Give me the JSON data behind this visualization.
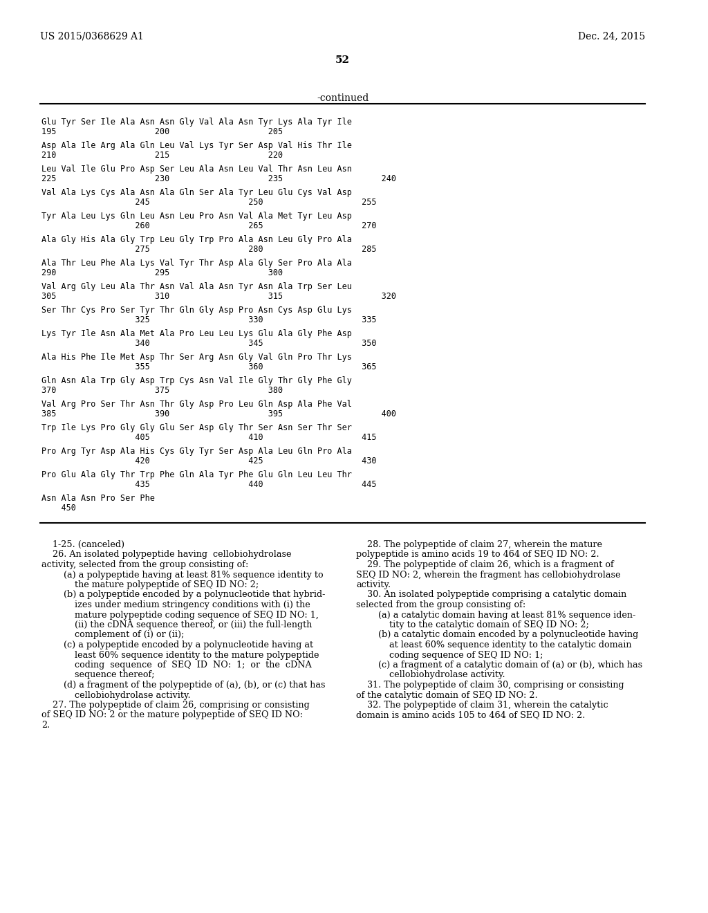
{
  "header_left": "US 2015/0368629 A1",
  "header_right": "Dec. 24, 2015",
  "page_number": "52",
  "continued_text": "-continued",
  "sequence_lines": [
    {
      "aa": "Glu Tyr Ser Ile Ala Asn Asn Gly Val Ala Asn Tyr Lys Ala Tyr Ile",
      "nums": "195                    200                    205"
    },
    {
      "aa": "Asp Ala Ile Arg Ala Gln Leu Val Lys Tyr Ser Asp Val His Thr Ile",
      "nums": "210                    215                    220"
    },
    {
      "aa": "Leu Val Ile Glu Pro Asp Ser Leu Ala Asn Leu Val Thr Asn Leu Asn",
      "nums": "225                    230                    235                    240"
    },
    {
      "aa": "Val Ala Lys Cys Ala Asn Ala Gln Ser Ala Tyr Leu Glu Cys Val Asp",
      "nums": "                   245                    250                    255"
    },
    {
      "aa": "Tyr Ala Leu Lys Gln Leu Asn Leu Pro Asn Val Ala Met Tyr Leu Asp",
      "nums": "                   260                    265                    270"
    },
    {
      "aa": "Ala Gly His Ala Gly Trp Leu Gly Trp Pro Ala Asn Leu Gly Pro Ala",
      "nums": "                   275                    280                    285"
    },
    {
      "aa": "Ala Thr Leu Phe Ala Lys Val Tyr Thr Asp Ala Gly Ser Pro Ala Ala",
      "nums": "290                    295                    300"
    },
    {
      "aa": "Val Arg Gly Leu Ala Thr Asn Val Ala Asn Tyr Asn Ala Trp Ser Leu",
      "nums": "305                    310                    315                    320"
    },
    {
      "aa": "Ser Thr Cys Pro Ser Tyr Thr Gln Gly Asp Pro Asn Cys Asp Glu Lys",
      "nums": "                   325                    330                    335"
    },
    {
      "aa": "Lys Tyr Ile Asn Ala Met Ala Pro Leu Leu Lys Glu Ala Gly Phe Asp",
      "nums": "                   340                    345                    350"
    },
    {
      "aa": "Ala His Phe Ile Met Asp Thr Ser Arg Asn Gly Val Gln Pro Thr Lys",
      "nums": "                   355                    360                    365"
    },
    {
      "aa": "Gln Asn Ala Trp Gly Asp Trp Cys Asn Val Ile Gly Thr Gly Phe Gly",
      "nums": "370                    375                    380"
    },
    {
      "aa": "Val Arg Pro Ser Thr Asn Thr Gly Asp Pro Leu Gln Asp Ala Phe Val",
      "nums": "385                    390                    395                    400"
    },
    {
      "aa": "Trp Ile Lys Pro Gly Gly Glu Ser Asp Gly Thr Ser Asn Ser Thr Ser",
      "nums": "                   405                    410                    415"
    },
    {
      "aa": "Pro Arg Tyr Asp Ala His Cys Gly Tyr Ser Asp Ala Leu Gln Pro Ala",
      "nums": "                   420                    425                    430"
    },
    {
      "aa": "Pro Glu Ala Gly Thr Trp Phe Gln Ala Tyr Phe Glu Gln Leu Leu Thr",
      "nums": "                   435                    440                    445"
    },
    {
      "aa": "Asn Ala Asn Pro Ser Phe",
      "nums": "    450"
    }
  ],
  "claims_left": [
    "    1-25. (canceled)",
    "    26. An isolated polypeptide having  cellobiohydrolase",
    "activity, selected from the group consisting of:",
    "        (a) a polypeptide having at least 81% sequence identity to",
    "            the mature polypeptide of SEQ ID NO: 2;",
    "        (b) a polypeptide encoded by a polynucleotide that hybrid-",
    "            izes under medium stringency conditions with (i) the",
    "            mature polypeptide coding sequence of SEQ ID NO: 1,",
    "            (ii) the cDNA sequence thereof, or (iii) the full-length",
    "            complement of (i) or (ii);",
    "        (c) a polypeptide encoded by a polynucleotide having at",
    "            least 60% sequence identity to the mature polypeptide",
    "            coding  sequence  of  SEQ  ID  NO:  1;  or  the  cDNA",
    "            sequence thereof;",
    "        (d) a fragment of the polypeptide of (a), (b), or (c) that has",
    "            cellobiohydrolase activity.",
    "    27. The polypeptide of claim 26, comprising or consisting",
    "of SEQ ID NO: 2 or the mature polypeptide of SEQ ID NO:",
    "2."
  ],
  "claims_right": [
    "    28. The polypeptide of claim 27, wherein the mature",
    "polypeptide is amino acids 19 to 464 of SEQ ID NO: 2.",
    "    29. The polypeptide of claim 26, which is a fragment of",
    "SEQ ID NO: 2, wherein the fragment has cellobiohydrolase",
    "activity.",
    "    30. An isolated polypeptide comprising a catalytic domain",
    "selected from the group consisting of:",
    "        (a) a catalytic domain having at least 81% sequence iden-",
    "            tity to the catalytic domain of SEQ ID NO: 2;",
    "        (b) a catalytic domain encoded by a polynucleotide having",
    "            at least 60% sequence identity to the catalytic domain",
    "            coding sequence of SEQ ID NO: 1;",
    "        (c) a fragment of a catalytic domain of (a) or (b), which has",
    "            cellobiohydrolase activity.",
    "    31. The polypeptide of claim 30, comprising or consisting",
    "of the catalytic domain of SEQ ID NO: 2.",
    "    32. The polypeptide of claim 31, wherein the catalytic",
    "domain is amino acids 105 to 464 of SEQ ID NO: 2."
  ]
}
